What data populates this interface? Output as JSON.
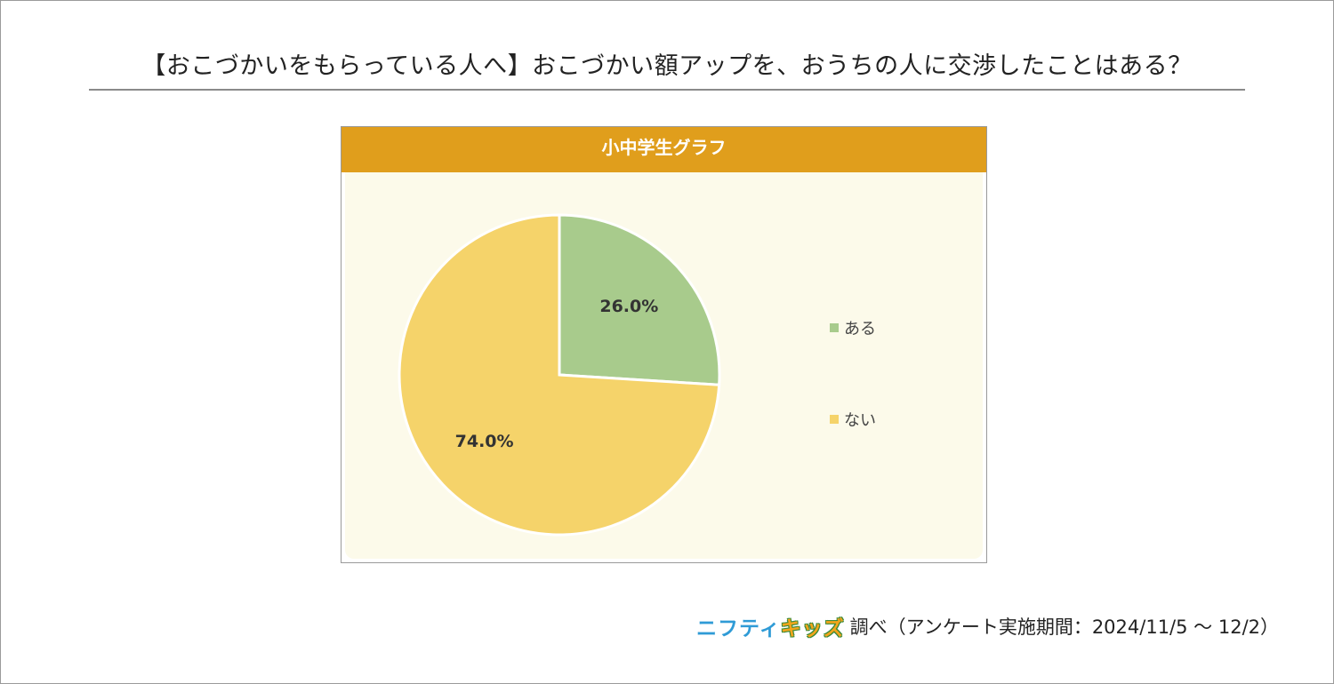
{
  "title": "【おこづかいをもらっている人へ】おこづかい額アップを、おうちの人に交渉したことはある？",
  "footer": {
    "logo_part1": "ニフティ",
    "logo_part2": "キッズ",
    "note": "調べ（アンケート実施期間：2024/11/5 ～ 12/2）"
  },
  "chart_data": {
    "type": "pie",
    "title": "小中学生グラフ",
    "categories": [
      "ある",
      "ない"
    ],
    "values": [
      26.0,
      74.0
    ],
    "value_labels": [
      "26.0%",
      "74.0%"
    ],
    "colors": [
      "#a8cb8c",
      "#f5d36a"
    ],
    "legend_position": "right"
  },
  "colors": {
    "header": "#e09e1c",
    "panel_background": "#fcfaea"
  }
}
